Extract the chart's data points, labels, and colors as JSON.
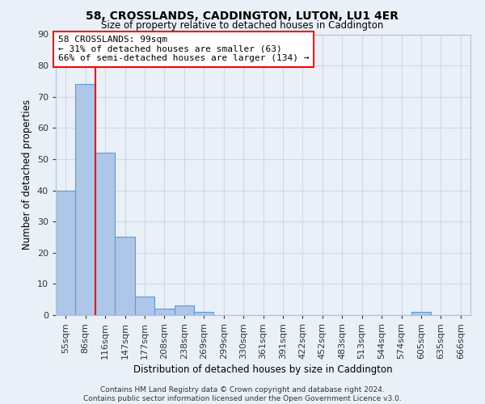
{
  "title": "58, CROSSLANDS, CADDINGTON, LUTON, LU1 4ER",
  "subtitle": "Size of property relative to detached houses in Caddington",
  "xlabel": "Distribution of detached houses by size in Caddington",
  "ylabel": "Number of detached properties",
  "bar_values": [
    40,
    74,
    52,
    25,
    6,
    2,
    3,
    1,
    0,
    0,
    0,
    0,
    0,
    0,
    0,
    0,
    0,
    0,
    1,
    0,
    0
  ],
  "categories": [
    "55sqm",
    "86sqm",
    "116sqm",
    "147sqm",
    "177sqm",
    "208sqm",
    "238sqm",
    "269sqm",
    "299sqm",
    "330sqm",
    "361sqm",
    "391sqm",
    "422sqm",
    "452sqm",
    "483sqm",
    "513sqm",
    "544sqm",
    "574sqm",
    "605sqm",
    "635sqm",
    "666sqm"
  ],
  "bar_color": "#aec6e8",
  "bar_edge_color": "#5b9bd5",
  "grid_color": "#d0d8e8",
  "background_color": "#eaf0f8",
  "annotation_text": "58 CROSSLANDS: 99sqm\n← 31% of detached houses are smaller (63)\n66% of semi-detached houses are larger (134) →",
  "annotation_box_color": "white",
  "annotation_box_edge": "red",
  "red_line_x": 1.5,
  "ylim": [
    0,
    90
  ],
  "yticks": [
    0,
    10,
    20,
    30,
    40,
    50,
    60,
    70,
    80,
    90
  ],
  "footer": "Contains HM Land Registry data © Crown copyright and database right 2024.\nContains public sector information licensed under the Open Government Licence v3.0.",
  "figsize": [
    6.0,
    5.0
  ],
  "dpi": 100
}
